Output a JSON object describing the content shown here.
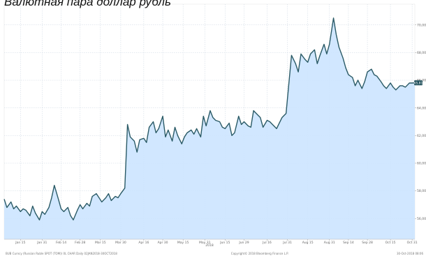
{
  "chart_data": {
    "type": "area",
    "title": "Валютная пара доллар рубль",
    "year_label": "2018",
    "x_ticks": [
      "Jan 15",
      "Jan 31",
      "Feb 14",
      "Feb 28",
      "Mar 15",
      "Mar 30",
      "Apr 16",
      "Apr 30",
      "May 15",
      "May 31",
      "Jun 15",
      "Jun 29",
      "Jul 16",
      "Jul 31",
      "Aug 15",
      "Aug 31",
      "Sep 14",
      "Sep 28",
      "Oct 15",
      "Oct 31"
    ],
    "y_ticks": [
      "56,00",
      "58,00",
      "60,00",
      "62,00",
      "64,00",
      "66,00",
      "68,00",
      "70,00"
    ],
    "y_tick_values": [
      56,
      58,
      60,
      62,
      64,
      66,
      68,
      70
    ],
    "ylim": [
      54.5,
      71.5
    ],
    "last_value_label": "65,81",
    "grid": true,
    "fill_color": "#cce4ff",
    "line_color": "#2a5a66",
    "series": [
      {
        "x": [
          "2018-01-03",
          "2018-01-05",
          "2018-01-08",
          "2018-01-10",
          "2018-01-12",
          "2018-01-15",
          "2018-01-17",
          "2018-01-19",
          "2018-01-22",
          "2018-01-24",
          "2018-01-26",
          "2018-01-29",
          "2018-01-31",
          "2018-02-02",
          "2018-02-05",
          "2018-02-07",
          "2018-02-09",
          "2018-02-12",
          "2018-02-14",
          "2018-02-16",
          "2018-02-19",
          "2018-02-21",
          "2018-02-23",
          "2018-02-26",
          "2018-02-28",
          "2018-03-02",
          "2018-03-05",
          "2018-03-07",
          "2018-03-09",
          "2018-03-12",
          "2018-03-14",
          "2018-03-16",
          "2018-03-19",
          "2018-03-21",
          "2018-03-23",
          "2018-03-26",
          "2018-03-28",
          "2018-03-30",
          "2018-04-02",
          "2018-04-04",
          "2018-04-06",
          "2018-04-09",
          "2018-04-11",
          "2018-04-13",
          "2018-04-16",
          "2018-04-18",
          "2018-04-20",
          "2018-04-23",
          "2018-04-25",
          "2018-04-27",
          "2018-04-30",
          "2018-05-02",
          "2018-05-04",
          "2018-05-07",
          "2018-05-09",
          "2018-05-11",
          "2018-05-14",
          "2018-05-16",
          "2018-05-18",
          "2018-05-21",
          "2018-05-23",
          "2018-05-25",
          "2018-05-28",
          "2018-05-30",
          "2018-06-01",
          "2018-06-04",
          "2018-06-06",
          "2018-06-08",
          "2018-06-11",
          "2018-06-13",
          "2018-06-15",
          "2018-06-18",
          "2018-06-20",
          "2018-06-22",
          "2018-06-25",
          "2018-06-27",
          "2018-06-29",
          "2018-07-02",
          "2018-07-04",
          "2018-07-06",
          "2018-07-09",
          "2018-07-11",
          "2018-07-13",
          "2018-07-16",
          "2018-07-18",
          "2018-07-20",
          "2018-07-23",
          "2018-07-25",
          "2018-07-27",
          "2018-07-30",
          "2018-08-01",
          "2018-08-03",
          "2018-08-06",
          "2018-08-08",
          "2018-08-10",
          "2018-08-13",
          "2018-08-15",
          "2018-08-17",
          "2018-08-20",
          "2018-08-22",
          "2018-08-24",
          "2018-08-27",
          "2018-08-29",
          "2018-08-31",
          "2018-09-03",
          "2018-09-05",
          "2018-09-07",
          "2018-09-10",
          "2018-09-12",
          "2018-09-14",
          "2018-09-17",
          "2018-09-19",
          "2018-09-21",
          "2018-09-24",
          "2018-09-26",
          "2018-09-28",
          "2018-10-01",
          "2018-10-03",
          "2018-10-05",
          "2018-10-08",
          "2018-10-10",
          "2018-10-12",
          "2018-10-15",
          "2018-10-17",
          "2018-10-19",
          "2018-10-22",
          "2018-10-24",
          "2018-10-26",
          "2018-10-29",
          "2018-10-31",
          "2018-11-02"
        ],
        "values": [
          57.4,
          56.8,
          57.2,
          56.7,
          56.9,
          56.5,
          56.7,
          56.6,
          56.2,
          56.9,
          56.4,
          55.9,
          56.5,
          56.3,
          56.8,
          57.5,
          58.4,
          57.4,
          56.7,
          56.5,
          56.8,
          56.2,
          55.9,
          56.6,
          57.0,
          56.7,
          57.1,
          56.9,
          57.6,
          57.8,
          57.5,
          57.2,
          57.5,
          57.8,
          57.3,
          57.6,
          57.5,
          57.8,
          58.2,
          62.8,
          61.9,
          61.6,
          60.8,
          61.7,
          61.8,
          61.5,
          62.6,
          63.0,
          62.2,
          62.5,
          63.4,
          61.9,
          62.4,
          61.6,
          62.6,
          62.0,
          61.4,
          61.9,
          62.2,
          62.4,
          62.1,
          62.5,
          61.9,
          63.4,
          62.7,
          63.8,
          63.3,
          63.1,
          63.0,
          62.6,
          62.5,
          62.9,
          62.0,
          62.2,
          63.4,
          62.8,
          63.0,
          62.7,
          62.6,
          63.8,
          63.5,
          63.3,
          62.6,
          63.1,
          63.0,
          62.8,
          62.5,
          62.9,
          63.3,
          63.6,
          65.7,
          67.8,
          67.2,
          66.6,
          67.9,
          67.5,
          67.3,
          67.9,
          68.2,
          67.2,
          67.8,
          68.6,
          67.9,
          68.6,
          70.5,
          69.3,
          68.4,
          67.6,
          66.9,
          66.4,
          66.2,
          65.6,
          66.0,
          65.4,
          65.9,
          66.6,
          66.8,
          66.4,
          66.3,
          65.9,
          65.6,
          65.4,
          65.8,
          65.5,
          65.3,
          65.6,
          65.6,
          65.5,
          65.8,
          65.8,
          65.81
        ]
      }
    ]
  },
  "footer": {
    "source": "BUB Curncy (Russian Ruble SPOT (TOM)) 0L CHAR Daily 02JAN2018-30OCT2018",
    "copyright": "Copyright© 2018 Bloomberg Finance L.P.",
    "timestamp": "30-Oct-2018 08:06"
  }
}
